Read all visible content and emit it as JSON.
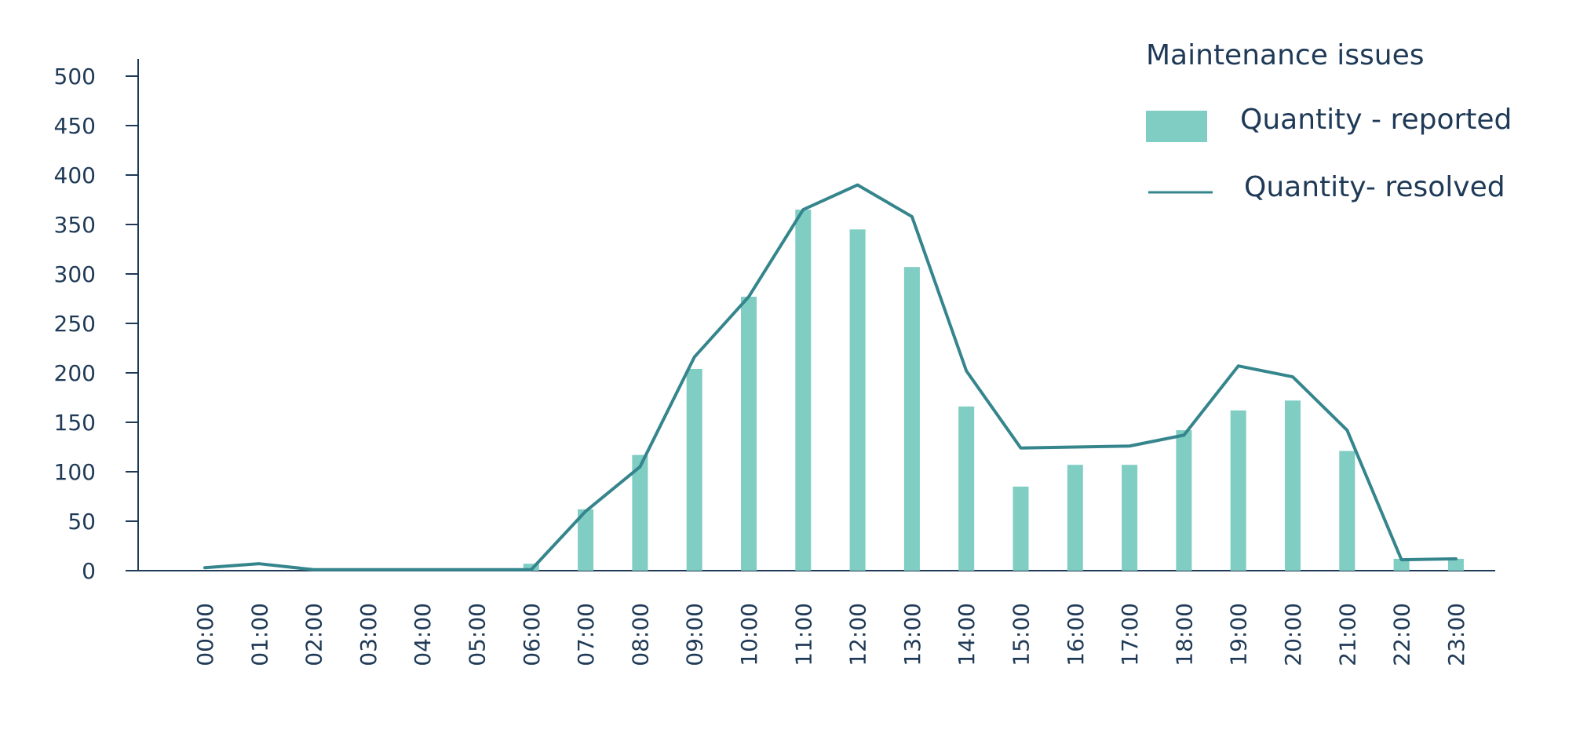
{
  "chart_data": {
    "type": "bar",
    "title": "",
    "xlabel": "",
    "ylabel": "",
    "ylim": [
      0,
      500
    ],
    "yticks": [
      0,
      50,
      100,
      150,
      200,
      250,
      300,
      350,
      400,
      450,
      500
    ],
    "categories": [
      "00:00",
      "01:00",
      "02:00",
      "03:00",
      "04:00",
      "05:00",
      "06:00",
      "07:00",
      "08:00",
      "09:00",
      "10:00",
      "11:00",
      "12:00",
      "13:00",
      "14:00",
      "15:00",
      "16:00",
      "17:00",
      "18:00",
      "19:00",
      "20:00",
      "21:00",
      "22:00",
      "23:00"
    ],
    "legend": {
      "title": "Maintenance issues",
      "position": "top-right"
    },
    "series": [
      {
        "name": "Quantity - reported",
        "kind": "bar",
        "color": "#7fcdc3",
        "values": [
          0,
          0,
          0,
          0,
          0,
          0,
          7,
          62,
          117,
          204,
          277,
          365,
          345,
          307,
          166,
          85,
          107,
          107,
          142,
          162,
          172,
          121,
          12,
          12
        ]
      },
      {
        "name": "Quantity- resolved",
        "kind": "line",
        "color": "#35858d",
        "values": [
          3,
          7,
          1,
          1,
          1,
          1,
          1,
          60,
          105,
          216,
          277,
          365,
          390,
          358,
          202,
          124,
          125,
          126,
          137,
          207,
          196,
          142,
          11,
          12
        ]
      }
    ],
    "grid": false
  }
}
